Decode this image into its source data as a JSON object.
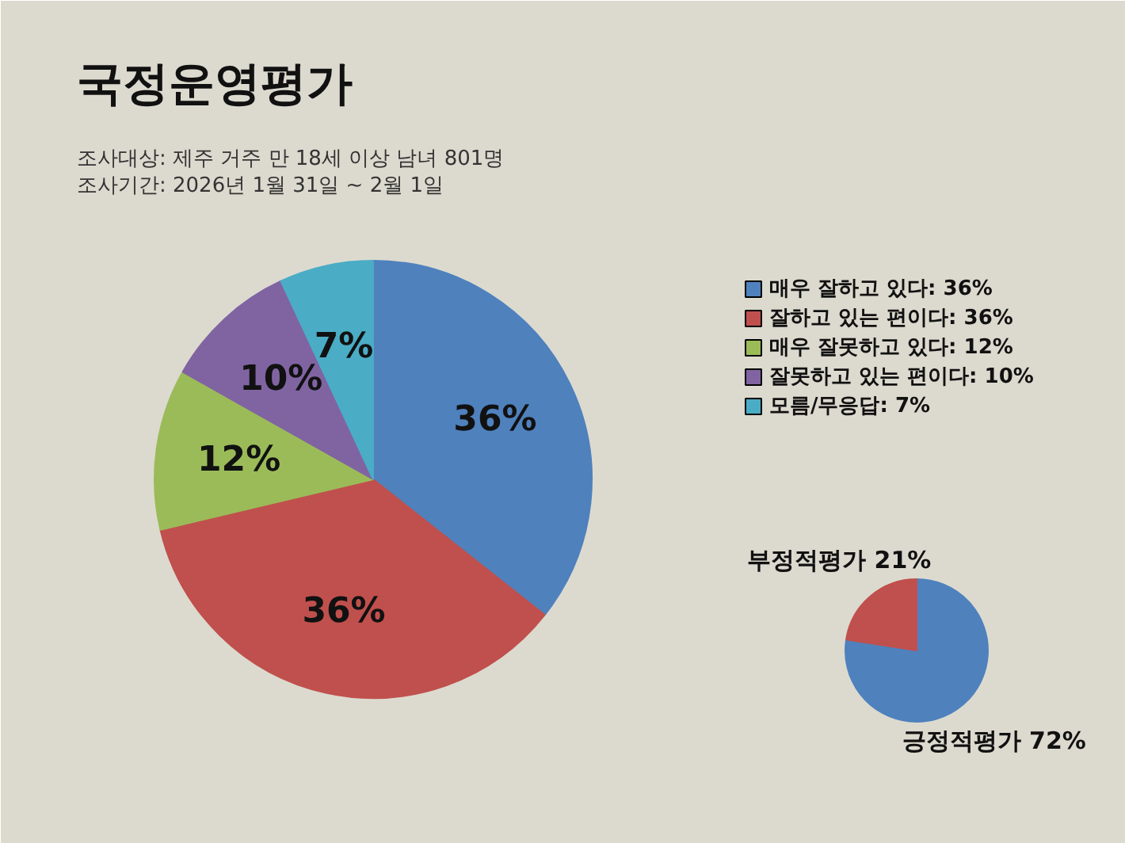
{
  "chart_data": [
    {
      "type": "pie",
      "title": "국정운영평가",
      "annotations": [
        "조사대상: 제주 거주 만 18세 이상 남녀 801명",
        "조사기간: 2026년 1월 31일 ~ 2월 1일"
      ],
      "categories": [
        "매우 잘하고 있다",
        "잘하고 있는 편이다",
        "매우 잘못하고 있다",
        "잘못하고 있는 편이다",
        "모름/무응답"
      ],
      "values": [
        36,
        36,
        12,
        10,
        7
      ],
      "colors": [
        "#4f81bd",
        "#c0504d",
        "#9bbb59",
        "#8064a2",
        "#4bacc6"
      ],
      "value_labels": [
        "36%",
        "36%",
        "12%",
        "10%",
        "7%"
      ],
      "legend": "right"
    },
    {
      "type": "pie",
      "categories": [
        "긍정적평가",
        "부정적평가"
      ],
      "values": [
        72,
        21
      ],
      "colors": [
        "#4f81bd",
        "#c0504d"
      ],
      "value_labels": [
        "72%",
        "21%"
      ]
    }
  ]
}
